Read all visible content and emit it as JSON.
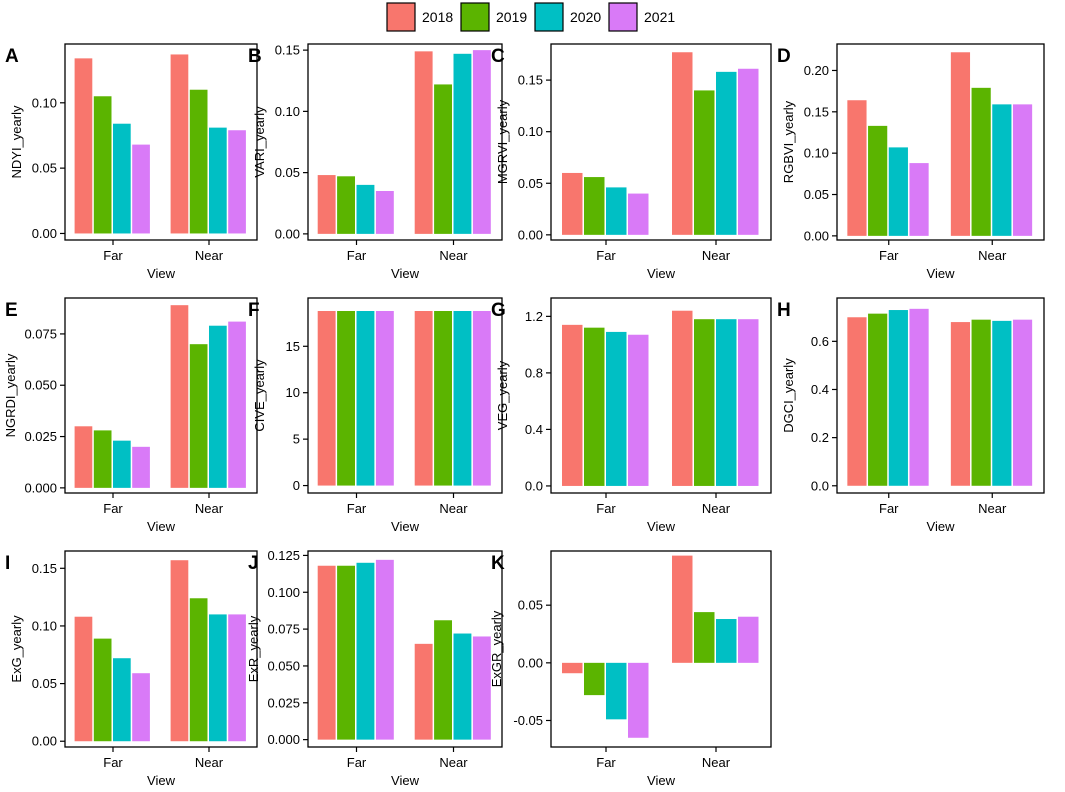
{
  "legend": {
    "entries": [
      {
        "label": "2018",
        "color": "#F8766D"
      },
      {
        "label": "2019",
        "color": "#5BB400"
      },
      {
        "label": "2020",
        "color": "#00BFC4"
      },
      {
        "label": "2021",
        "color": "#D97AF7"
      }
    ]
  },
  "chart_data": [
    {
      "id": "A",
      "letter": "A",
      "type": "bar",
      "ylabel": "NDYI_yearly",
      "xlabel": "View",
      "categories": [
        "Far",
        "Near"
      ],
      "ylim": [
        -0.005,
        0.145
      ],
      "yticks": [
        0.0,
        0.05,
        0.1
      ],
      "tick_labels": [
        "0.00",
        "0.05",
        "0.10"
      ],
      "series": [
        {
          "name": "2018",
          "values": [
            0.134,
            0.137
          ]
        },
        {
          "name": "2019",
          "values": [
            0.105,
            0.11
          ]
        },
        {
          "name": "2020",
          "values": [
            0.084,
            0.081
          ]
        },
        {
          "name": "2021",
          "values": [
            0.068,
            0.079
          ]
        }
      ]
    },
    {
      "id": "B",
      "letter": "B",
      "type": "bar",
      "ylabel": "VARI_yearly",
      "xlabel": "View",
      "categories": [
        "Far",
        "Near"
      ],
      "ylim": [
        -0.005,
        0.155
      ],
      "yticks": [
        0.0,
        0.05,
        0.1,
        0.15
      ],
      "tick_labels": [
        "0.00",
        "0.05",
        "0.10",
        "0.15"
      ],
      "series": [
        {
          "name": "2018",
          "values": [
            0.048,
            0.149
          ]
        },
        {
          "name": "2019",
          "values": [
            0.047,
            0.122
          ]
        },
        {
          "name": "2020",
          "values": [
            0.04,
            0.147
          ]
        },
        {
          "name": "2021",
          "values": [
            0.035,
            0.15
          ]
        }
      ]
    },
    {
      "id": "C",
      "letter": "C",
      "type": "bar",
      "ylabel": "MGRVI_yearly",
      "xlabel": "View",
      "categories": [
        "Far",
        "Near"
      ],
      "ylim": [
        -0.005,
        0.185
      ],
      "yticks": [
        0.0,
        0.05,
        0.1,
        0.15
      ],
      "tick_labels": [
        "0.00",
        "0.05",
        "0.10",
        "0.15"
      ],
      "series": [
        {
          "name": "2018",
          "values": [
            0.06,
            0.177
          ]
        },
        {
          "name": "2019",
          "values": [
            0.056,
            0.14
          ]
        },
        {
          "name": "2020",
          "values": [
            0.046,
            0.158
          ]
        },
        {
          "name": "2021",
          "values": [
            0.04,
            0.161
          ]
        }
      ]
    },
    {
      "id": "D",
      "letter": "D",
      "type": "bar",
      "ylabel": "RGBVI_yearly",
      "xlabel": "View",
      "categories": [
        "Far",
        "Near"
      ],
      "ylim": [
        -0.005,
        0.232
      ],
      "yticks": [
        0.0,
        0.05,
        0.1,
        0.15,
        0.2
      ],
      "tick_labels": [
        "0.00",
        "0.05",
        "0.10",
        "0.15",
        "0.20"
      ],
      "series": [
        {
          "name": "2018",
          "values": [
            0.164,
            0.222
          ]
        },
        {
          "name": "2019",
          "values": [
            0.133,
            0.179
          ]
        },
        {
          "name": "2020",
          "values": [
            0.107,
            0.159
          ]
        },
        {
          "name": "2021",
          "values": [
            0.088,
            0.159
          ]
        }
      ]
    },
    {
      "id": "E",
      "letter": "E",
      "type": "bar",
      "ylabel": "NGRDI_yearly",
      "xlabel": "View",
      "categories": [
        "Far",
        "Near"
      ],
      "ylim": [
        -0.0025,
        0.0925
      ],
      "yticks": [
        0.0,
        0.025,
        0.05,
        0.075
      ],
      "tick_labels": [
        "0.000",
        "0.025",
        "0.050",
        "0.075"
      ],
      "series": [
        {
          "name": "2018",
          "values": [
            0.03,
            0.089
          ]
        },
        {
          "name": "2019",
          "values": [
            0.028,
            0.07
          ]
        },
        {
          "name": "2020",
          "values": [
            0.023,
            0.079
          ]
        },
        {
          "name": "2021",
          "values": [
            0.02,
            0.081
          ]
        }
      ]
    },
    {
      "id": "F",
      "letter": "F",
      "type": "bar",
      "ylabel": "CIVE_yearly",
      "xlabel": "View",
      "categories": [
        "Far",
        "Near"
      ],
      "ylim": [
        -0.8,
        20.2
      ],
      "yticks": [
        0,
        5,
        10,
        15
      ],
      "tick_labels": [
        "0",
        "5",
        "10",
        "15"
      ],
      "series": [
        {
          "name": "2018",
          "values": [
            18.8,
            18.8
          ]
        },
        {
          "name": "2019",
          "values": [
            18.8,
            18.8
          ]
        },
        {
          "name": "2020",
          "values": [
            18.8,
            18.8
          ]
        },
        {
          "name": "2021",
          "values": [
            18.8,
            18.8
          ]
        }
      ]
    },
    {
      "id": "G",
      "letter": "G",
      "type": "bar",
      "ylabel": "VEG_yearly",
      "xlabel": "View",
      "categories": [
        "Far",
        "Near"
      ],
      "ylim": [
        -0.05,
        1.33
      ],
      "yticks": [
        0.0,
        0.4,
        0.8,
        1.2
      ],
      "tick_labels": [
        "0.0",
        "0.4",
        "0.8",
        "1.2"
      ],
      "series": [
        {
          "name": "2018",
          "values": [
            1.14,
            1.24
          ]
        },
        {
          "name": "2019",
          "values": [
            1.12,
            1.18
          ]
        },
        {
          "name": "2020",
          "values": [
            1.09,
            1.18
          ]
        },
        {
          "name": "2021",
          "values": [
            1.07,
            1.18
          ]
        }
      ]
    },
    {
      "id": "H",
      "letter": "H",
      "type": "bar",
      "ylabel": "DGCI_yearly",
      "xlabel": "View",
      "categories": [
        "Far",
        "Near"
      ],
      "ylim": [
        -0.03,
        0.78
      ],
      "yticks": [
        0.0,
        0.2,
        0.4,
        0.6
      ],
      "tick_labels": [
        "0.0",
        "0.2",
        "0.4",
        "0.6"
      ],
      "series": [
        {
          "name": "2018",
          "values": [
            0.7,
            0.68
          ]
        },
        {
          "name": "2019",
          "values": [
            0.715,
            0.69
          ]
        },
        {
          "name": "2020",
          "values": [
            0.73,
            0.685
          ]
        },
        {
          "name": "2021",
          "values": [
            0.735,
            0.69
          ]
        }
      ]
    },
    {
      "id": "I",
      "letter": "I",
      "type": "bar",
      "ylabel": "ExG_yearly",
      "xlabel": "View",
      "categories": [
        "Far",
        "Near"
      ],
      "ylim": [
        -0.005,
        0.165
      ],
      "yticks": [
        0.0,
        0.05,
        0.1,
        0.15
      ],
      "tick_labels": [
        "0.00",
        "0.05",
        "0.10",
        "0.15"
      ],
      "series": [
        {
          "name": "2018",
          "values": [
            0.108,
            0.157
          ]
        },
        {
          "name": "2019",
          "values": [
            0.089,
            0.124
          ]
        },
        {
          "name": "2020",
          "values": [
            0.072,
            0.11
          ]
        },
        {
          "name": "2021",
          "values": [
            0.059,
            0.11
          ]
        }
      ]
    },
    {
      "id": "J",
      "letter": "J",
      "type": "bar",
      "ylabel": "ExR_yearly",
      "xlabel": "View",
      "categories": [
        "Far",
        "Near"
      ],
      "ylim": [
        -0.005,
        0.128
      ],
      "yticks": [
        0.0,
        0.025,
        0.05,
        0.075,
        0.1,
        0.125
      ],
      "tick_labels": [
        "0.000",
        "0.025",
        "0.050",
        "0.075",
        "0.100",
        "0.125"
      ],
      "series": [
        {
          "name": "2018",
          "values": [
            0.118,
            0.065
          ]
        },
        {
          "name": "2019",
          "values": [
            0.118,
            0.081
          ]
        },
        {
          "name": "2020",
          "values": [
            0.12,
            0.072
          ]
        },
        {
          "name": "2021",
          "values": [
            0.122,
            0.07
          ]
        }
      ]
    },
    {
      "id": "K",
      "letter": "K",
      "type": "bar",
      "ylabel": "ExGR_yearly",
      "xlabel": "View",
      "categories": [
        "Far",
        "Near"
      ],
      "ylim": [
        -0.073,
        0.097
      ],
      "yticks": [
        -0.05,
        0.0,
        0.05
      ],
      "tick_labels": [
        "-0.05",
        "0.00",
        "0.05"
      ],
      "series": [
        {
          "name": "2018",
          "values": [
            -0.009,
            0.093
          ]
        },
        {
          "name": "2019",
          "values": [
            -0.028,
            0.044
          ]
        },
        {
          "name": "2020",
          "values": [
            -0.049,
            0.038
          ]
        },
        {
          "name": "2021",
          "values": [
            -0.065,
            0.04
          ]
        }
      ]
    }
  ]
}
